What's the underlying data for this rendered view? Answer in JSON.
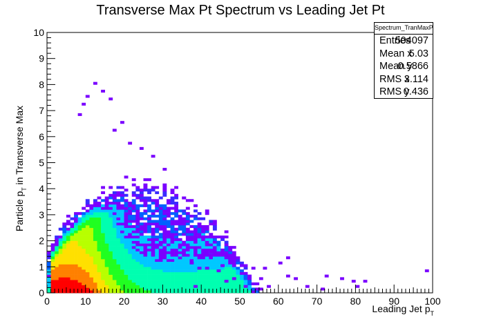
{
  "title": "Transverse Max Pt Spectrum vs Leading Jet Pt",
  "stats": {
    "name": "Spectrum_TranMaxPtvsLeadJetPt",
    "rows": [
      {
        "label": "Entries",
        "value": "504097"
      },
      {
        "label": "Mean x",
        "value": "5.03"
      },
      {
        "label": "Mean y",
        "value": "0.5866"
      },
      {
        "label": "RMS x",
        "value": "3.114"
      },
      {
        "label": "RMS y",
        "value": "0.436"
      }
    ]
  },
  "chart_data": {
    "type": "heatmap",
    "title": "Transverse Max Pt Spectrum vs Leading Jet Pt",
    "xlabel": "Leading Jet p",
    "xlabel_sub": "T",
    "ylabel": "Particle p",
    "ylabel_sub": "T",
    "ylabel_suffix": " in Transverse Max",
    "xlim": [
      0,
      100
    ],
    "ylim": [
      0,
      10
    ],
    "x_ticks": [
      0,
      10,
      20,
      30,
      40,
      50,
      60,
      70,
      80,
      90,
      100
    ],
    "y_ticks": [
      0,
      1,
      2,
      3,
      4,
      5,
      6,
      7,
      8,
      9,
      10
    ],
    "bins_x": 100,
    "bins_y": 100,
    "colormap": [
      "#7a00ff",
      "#3a2bff",
      "#0060ff",
      "#00c8ff",
      "#00ffb0",
      "#20ff20",
      "#b8ff00",
      "#ffe000",
      "#ff8000",
      "#ff0000"
    ],
    "peak": {
      "x": 3,
      "y": 0.3
    },
    "sparse_cells": [
      [
        12,
        8
      ],
      [
        14,
        7.7
      ],
      [
        16,
        7.4
      ],
      [
        10.5,
        7.6
      ],
      [
        9.5,
        7.2
      ],
      [
        8,
        6.8
      ],
      [
        19,
        6.6
      ],
      [
        17,
        6.3
      ],
      [
        21,
        5.8
      ],
      [
        24,
        5.5
      ],
      [
        27,
        5.2
      ],
      [
        30,
        4.8
      ],
      [
        35,
        3.6
      ],
      [
        40,
        2.1
      ],
      [
        42,
        1.5
      ],
      [
        45,
        1.0
      ],
      [
        46,
        0.4
      ],
      [
        48,
        0.6
      ],
      [
        50,
        1.0
      ],
      [
        51,
        0.2
      ],
      [
        53,
        0.9
      ],
      [
        55,
        0.5
      ],
      [
        57,
        0.3
      ],
      [
        60,
        1.1
      ],
      [
        62,
        0.7
      ],
      [
        64,
        0.5
      ],
      [
        67,
        0.2
      ],
      [
        71,
        0.1
      ],
      [
        72,
        0.7
      ],
      [
        76,
        0.6
      ],
      [
        79,
        0.4
      ],
      [
        80,
        0.2
      ],
      [
        82,
        0.4
      ],
      [
        98,
        0.8
      ],
      [
        62,
        1.3
      ],
      [
        56,
        0.9
      ],
      [
        52,
        0.7
      ],
      [
        44,
        0.8
      ],
      [
        39,
        0.9
      ],
      [
        38,
        0.2
      ],
      [
        28,
        1.7
      ],
      [
        37,
        1.1
      ],
      [
        41,
        0.9
      ],
      [
        31,
        2.1
      ],
      [
        26,
        2.9
      ],
      [
        33,
        2.0
      ],
      [
        29,
        2.5
      ]
    ]
  }
}
